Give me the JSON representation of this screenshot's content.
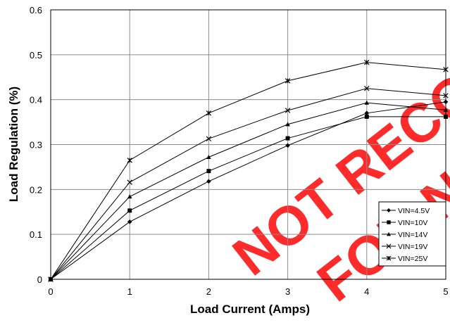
{
  "chart_data": {
    "type": "line",
    "xlabel": "Load Current (Amps)",
    "ylabel": "Load Regulation (%)",
    "xlim": [
      0,
      5
    ],
    "ylim": [
      0,
      0.6
    ],
    "x_ticks": [
      "0",
      "1",
      "2",
      "3",
      "4",
      "5"
    ],
    "y_ticks": [
      "0",
      "0.1",
      "0.2",
      "0.3",
      "0.4",
      "0.5",
      "0.6"
    ],
    "grid": true,
    "legend_position": "right",
    "x": [
      0,
      1,
      2,
      3,
      4,
      5
    ],
    "series": [
      {
        "name": "VIN=4.5V",
        "marker": "diamond",
        "values": [
          0,
          0.128,
          0.218,
          0.298,
          0.37,
          0.395
        ]
      },
      {
        "name": "VIN=10V",
        "marker": "square",
        "values": [
          0,
          0.153,
          0.241,
          0.314,
          0.362,
          0.362
        ]
      },
      {
        "name": "VIN=14V",
        "marker": "triangle",
        "values": [
          0,
          0.184,
          0.272,
          0.345,
          0.393,
          0.377
        ]
      },
      {
        "name": "VIN=19V",
        "marker": "x",
        "values": [
          0,
          0.216,
          0.313,
          0.376,
          0.425,
          0.409
        ]
      },
      {
        "name": "VIN=25V",
        "marker": "star",
        "values": [
          0,
          0.265,
          0.37,
          0.442,
          0.483,
          0.467
        ]
      }
    ],
    "watermark": {
      "line1": "NOT RECOMMENDED",
      "line2": "FOR NEW DESIGNS",
      "color": "#ff2b2b"
    }
  }
}
